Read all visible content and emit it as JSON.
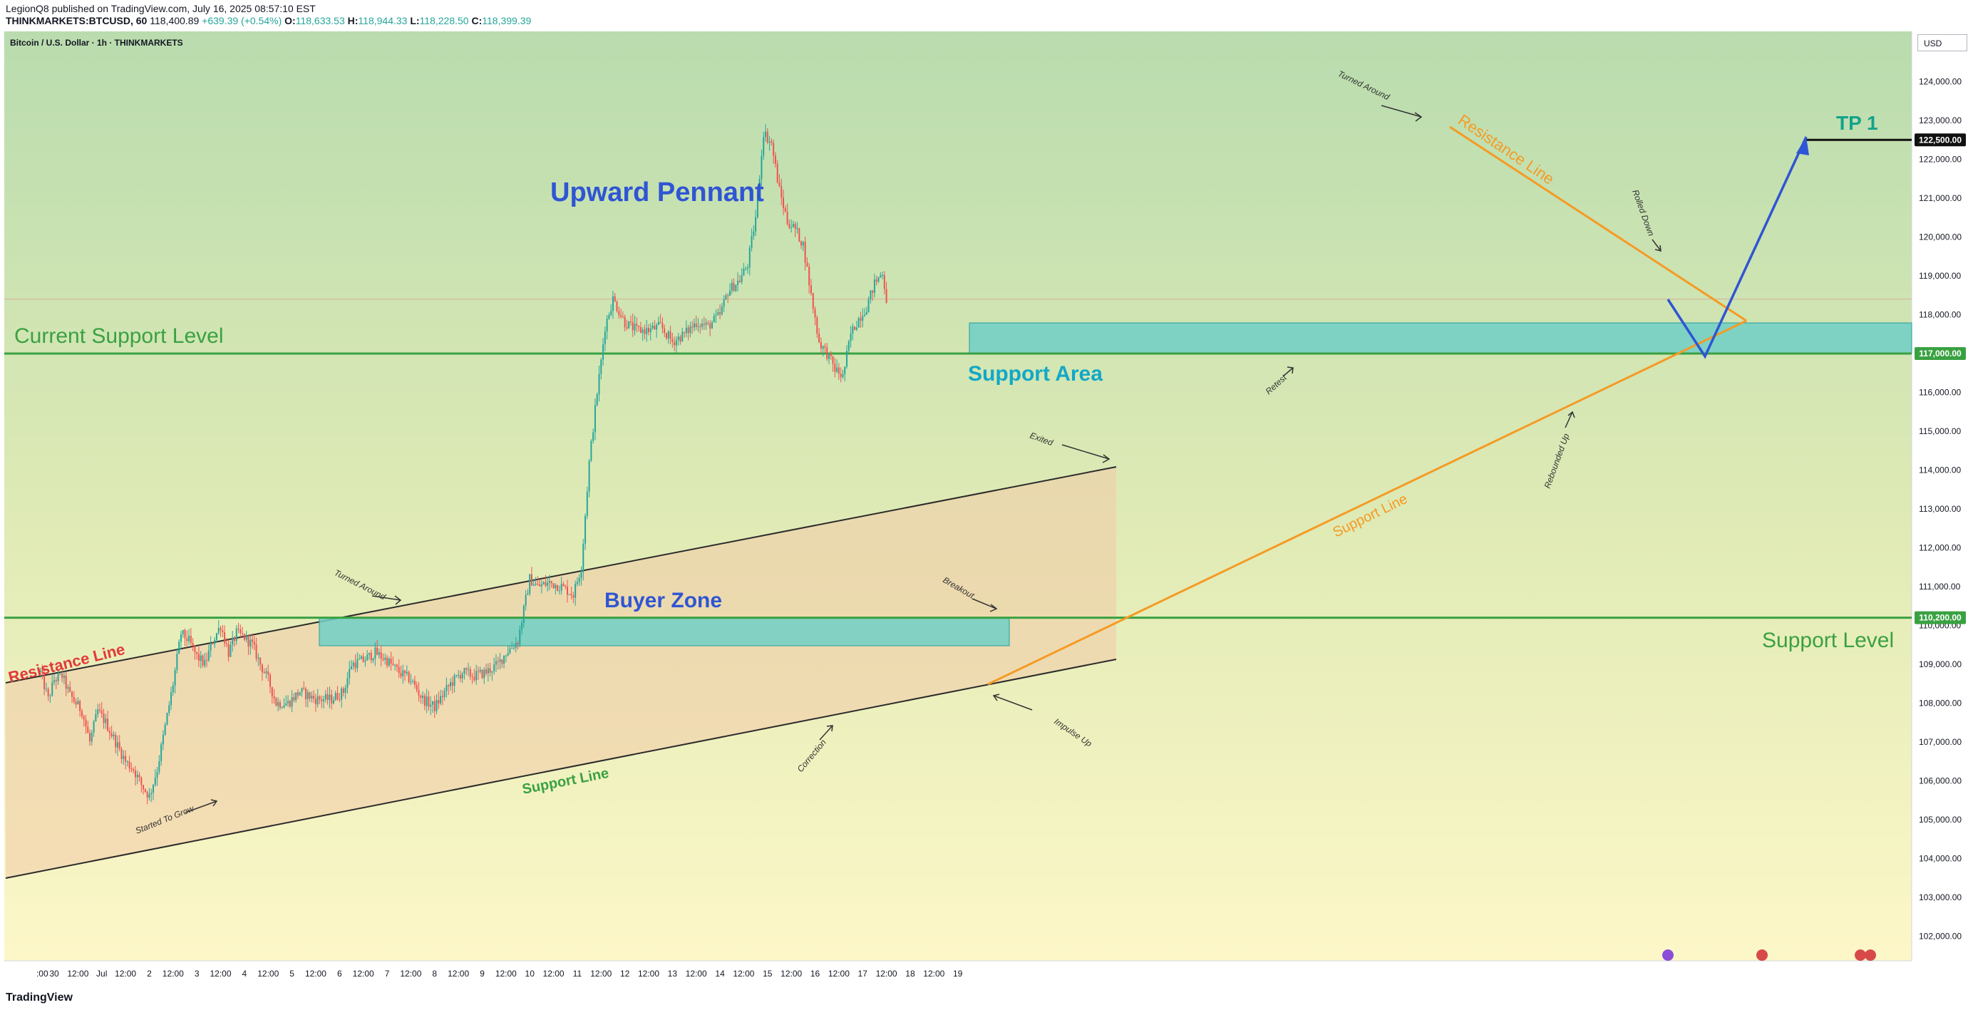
{
  "header": {
    "published": "LegionQ8 published on TradingView.com, July 16, 2025 08:57:10 EST",
    "symbol_line": "THINKMARKETS:BTCUSD, 60",
    "last_price": "118,400.89",
    "change": "+639.39 (+0.54%)",
    "o_label": "O:",
    "o_value": "118,633.53",
    "h_label": "H:",
    "h_value": "118,944.33",
    "l_label": "L:",
    "l_value": "118,228.50",
    "c_label": "C:",
    "c_value": "118,399.39"
  },
  "chart_title": "Bitcoin / U.S. Dollar · 1h · THINKMARKETS",
  "currency_button": "USD",
  "footer": {
    "brand": "TradingView"
  },
  "colors": {
    "bg_top": "#b9dcae",
    "bg_bottom": "#fdf7c8",
    "channel_fill": "#f2cba8",
    "zone_fill": "#6fcfc5",
    "zone_stroke": "#2a9d9a",
    "support_green": "#3aa142",
    "orange": "#f59a23",
    "blue_text": "#2f55d4",
    "teal_text": "#12a8c8",
    "red_text": "#e23a3a",
    "candle_up": "#26a69a",
    "candle_down": "#ef5350"
  },
  "chart_data": {
    "type": "candlestick",
    "symbol": "BTCUSD",
    "interval": "1h",
    "ylim": [
      101400,
      124800
    ],
    "y_ticks": [
      102000,
      103000,
      104000,
      105000,
      106000,
      107000,
      108000,
      109000,
      110000,
      111000,
      112000,
      113000,
      114000,
      115000,
      116000,
      117000,
      118000,
      119000,
      120000,
      121000,
      122000,
      123000,
      124000
    ],
    "x_ticks": [
      {
        "t": -6,
        "label": ":00"
      },
      {
        "t": 0,
        "label": "30"
      },
      {
        "t": 12,
        "label": "12:00"
      },
      {
        "t": 24,
        "label": "Jul"
      },
      {
        "t": 36,
        "label": "12:00"
      },
      {
        "t": 48,
        "label": "2"
      },
      {
        "t": 60,
        "label": "12:00"
      },
      {
        "t": 72,
        "label": "3"
      },
      {
        "t": 84,
        "label": "12:00"
      },
      {
        "t": 96,
        "label": "4"
      },
      {
        "t": 108,
        "label": "12:00"
      },
      {
        "t": 120,
        "label": "5"
      },
      {
        "t": 132,
        "label": "12:00"
      },
      {
        "t": 144,
        "label": "6"
      },
      {
        "t": 156,
        "label": "12:00"
      },
      {
        "t": 168,
        "label": "7"
      },
      {
        "t": 180,
        "label": "12:00"
      },
      {
        "t": 192,
        "label": "8"
      },
      {
        "t": 204,
        "label": "12:00"
      },
      {
        "t": 216,
        "label": "9"
      },
      {
        "t": 228,
        "label": "12:00"
      },
      {
        "t": 240,
        "label": "10"
      },
      {
        "t": 252,
        "label": "12:00"
      },
      {
        "t": 264,
        "label": "11"
      },
      {
        "t": 276,
        "label": "12:00"
      },
      {
        "t": 288,
        "label": "12"
      },
      {
        "t": 300,
        "label": "12:00"
      },
      {
        "t": 312,
        "label": "13"
      },
      {
        "t": 324,
        "label": "12:00"
      },
      {
        "t": 336,
        "label": "14"
      },
      {
        "t": 348,
        "label": "12:00"
      },
      {
        "t": 360,
        "label": "15"
      },
      {
        "t": 372,
        "label": "12:00"
      },
      {
        "t": 384,
        "label": "16"
      },
      {
        "t": 396,
        "label": "12:00"
      },
      {
        "t": 408,
        "label": "17"
      },
      {
        "t": 420,
        "label": "12:00"
      },
      {
        "t": 432,
        "label": "18"
      },
      {
        "t": 444,
        "label": "12:00"
      },
      {
        "t": 456,
        "label": "19"
      }
    ],
    "price_path": [
      [
        -7,
        108800
      ],
      [
        -3,
        108100
      ],
      [
        0,
        108600
      ],
      [
        4,
        108700
      ],
      [
        8,
        108200
      ],
      [
        14,
        107800
      ],
      [
        18,
        107000
      ],
      [
        22,
        107800
      ],
      [
        26,
        107500
      ],
      [
        30,
        107100
      ],
      [
        36,
        106500
      ],
      [
        40,
        106300
      ],
      [
        44,
        105900
      ],
      [
        48,
        105600
      ],
      [
        52,
        106300
      ],
      [
        56,
        107400
      ],
      [
        60,
        108500
      ],
      [
        64,
        109800
      ],
      [
        68,
        109600
      ],
      [
        72,
        109200
      ],
      [
        76,
        109000
      ],
      [
        80,
        109600
      ],
      [
        84,
        110000
      ],
      [
        88,
        109300
      ],
      [
        92,
        109800
      ],
      [
        96,
        109700
      ],
      [
        100,
        109500
      ],
      [
        104,
        109000
      ],
      [
        108,
        108600
      ],
      [
        112,
        108000
      ],
      [
        118,
        108000
      ],
      [
        124,
        108300
      ],
      [
        132,
        108100
      ],
      [
        140,
        108100
      ],
      [
        146,
        108300
      ],
      [
        150,
        109000
      ],
      [
        156,
        109100
      ],
      [
        162,
        109300
      ],
      [
        168,
        109100
      ],
      [
        174,
        108800
      ],
      [
        180,
        108600
      ],
      [
        186,
        108100
      ],
      [
        192,
        107900
      ],
      [
        196,
        108200
      ],
      [
        200,
        108500
      ],
      [
        206,
        108800
      ],
      [
        212,
        108700
      ],
      [
        218,
        108800
      ],
      [
        224,
        109000
      ],
      [
        228,
        109300
      ],
      [
        234,
        109600
      ],
      [
        240,
        111200
      ],
      [
        244,
        111000
      ],
      [
        250,
        111100
      ],
      [
        256,
        111000
      ],
      [
        262,
        110800
      ],
      [
        266,
        111500
      ],
      [
        270,
        114200
      ],
      [
        274,
        116000
      ],
      [
        276,
        116800
      ],
      [
        278,
        117700
      ],
      [
        282,
        118400
      ],
      [
        288,
        117800
      ],
      [
        294,
        117600
      ],
      [
        300,
        117600
      ],
      [
        306,
        117700
      ],
      [
        312,
        117300
      ],
      [
        318,
        117500
      ],
      [
        324,
        117800
      ],
      [
        330,
        117700
      ],
      [
        336,
        118000
      ],
      [
        340,
        118600
      ],
      [
        346,
        118900
      ],
      [
        350,
        119300
      ],
      [
        354,
        120500
      ],
      [
        358,
        122700
      ],
      [
        362,
        122400
      ],
      [
        366,
        121200
      ],
      [
        370,
        120400
      ],
      [
        374,
        120200
      ],
      [
        378,
        119800
      ],
      [
        382,
        118500
      ],
      [
        386,
        117300
      ],
      [
        390,
        117000
      ],
      [
        394,
        116600
      ],
      [
        398,
        116400
      ],
      [
        402,
        117500
      ],
      [
        406,
        117900
      ],
      [
        410,
        118200
      ],
      [
        414,
        118800
      ],
      [
        418,
        119100
      ],
      [
        420,
        118400
      ]
    ],
    "horizontal_levels": [
      {
        "name": "Current Support Level",
        "price": 117000,
        "axis_label": "117,000.00"
      },
      {
        "name": "Support Level",
        "price": 110200,
        "axis_label": "110,200.00"
      },
      {
        "name": "TP 1",
        "price": 122500,
        "axis_label": "122,500.00"
      }
    ],
    "texts": {
      "title": "Upward Pennant",
      "current_support_level": "Current Support Level",
      "support_level": "Support Level",
      "buyer_zone": "Buyer Zone",
      "support_area": "Support Area",
      "tp1": "TP 1",
      "resistance_line_left": "Resistance Line",
      "support_line_left": "Support Line",
      "resistance_line_right": "Resistance Line",
      "support_line_right": "Support Line",
      "turned_around_left": "Turned Around",
      "turned_around_right": "Turned Around",
      "started_to_grow": "Started To Grow",
      "correction": "Correction",
      "impulse_up": "Impulse Up",
      "breakout": "Breakout",
      "exited": "Exited",
      "retest": "Retest",
      "rebounded_up": "Rebounded Up",
      "rolled_down": "Rolled Down"
    }
  }
}
